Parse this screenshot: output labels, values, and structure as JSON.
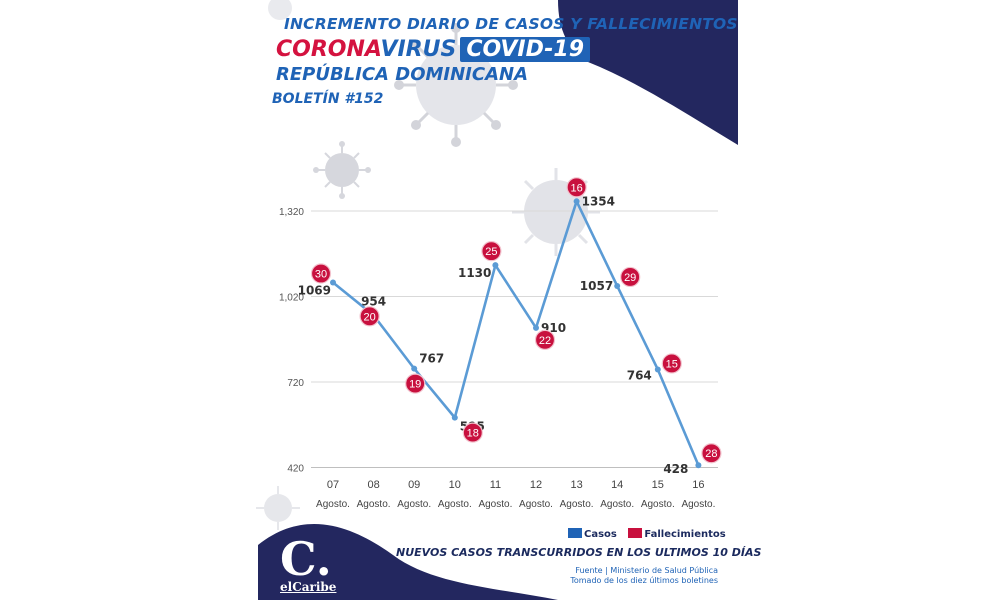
{
  "header": {
    "line1": "INCREMENTO DIARIO DE CASOS Y FALLECIMIENTOS",
    "corona": "CORONA",
    "virus": "VIRUS",
    "covid": "COVID-19",
    "country": "REPÚBLICA DOMINICANA",
    "bulletin": "BOLETÍN #152"
  },
  "chart_data": {
    "type": "line",
    "categories": [
      "07",
      "08",
      "09",
      "10",
      "11",
      "12",
      "13",
      "14",
      "15",
      "16"
    ],
    "category_sublabel": "Agosto.",
    "series": [
      {
        "name": "Casos",
        "color": "#5b9bd5",
        "values": [
          1069,
          954,
          767,
          595,
          1130,
          910,
          1354,
          1057,
          764,
          428
        ]
      },
      {
        "name": "Fallecimientos",
        "color": "#c8103e",
        "values": [
          30,
          20,
          19,
          18,
          25,
          22,
          16,
          29,
          15,
          28
        ]
      }
    ],
    "yticks": [
      420,
      720,
      1020,
      1320
    ],
    "ytick_labels": [
      "420",
      "720",
      "1,020",
      "1,320"
    ],
    "ylim": [
      420,
      1420
    ],
    "grid": true,
    "legend": "bottom-right"
  },
  "legend": {
    "casos": "Casos",
    "fallecimientos": "Fallecimientos"
  },
  "subtitle": "NUEVOS CASOS TRANSCURRIDOS EN LOS ULTIMOS 10 DÍAS",
  "source": {
    "line1": "Fuente | Ministerio de Salud Pública",
    "line2": "Tomado de  los diez últimos boletines"
  },
  "logo": {
    "letter": "C.",
    "name": "elCaribe"
  },
  "colors": {
    "navy": "#23275f",
    "blue": "#1f63b6",
    "red": "#c8103e",
    "line": "#5b9bd5"
  }
}
